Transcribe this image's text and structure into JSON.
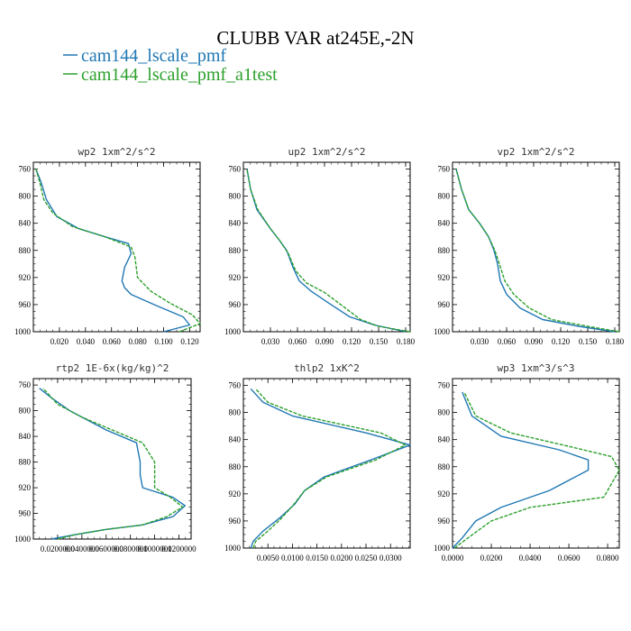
{
  "figure": {
    "title": "CLUBB VAR at245E,-2N",
    "legend": [
      {
        "label": "cam144_lscale_pmf",
        "color": "#1f77b4"
      },
      {
        "label": "cam144_lscale_pmf_a1test",
        "color": "#2ca02c"
      }
    ]
  },
  "chart_data": [
    {
      "type": "line",
      "title": "wp2   1xm^2/s^2",
      "y_ticks": [
        760,
        800,
        840,
        880,
        920,
        960,
        1000
      ],
      "y_range": [
        1000,
        750
      ],
      "x_range": [
        0,
        0.128
      ],
      "x_ticks": [
        0.02,
        0.04,
        0.06,
        0.08,
        0.1,
        0.12
      ],
      "x_tick_labels": [
        "0.020",
        "0.040",
        "0.060",
        "0.080",
        "0.100",
        "0.120"
      ],
      "series": [
        {
          "color": "#1f77b4",
          "dash": false,
          "x": [
            0.1,
            0.12,
            0.115,
            0.095,
            0.075,
            0.07,
            0.068,
            0.07,
            0.075,
            0.073,
            0.055,
            0.035,
            0.018,
            0.01,
            0.006,
            0.002
          ],
          "y": [
            1000,
            990,
            978,
            962,
            945,
            935,
            925,
            905,
            885,
            870,
            860,
            848,
            830,
            805,
            780,
            760
          ]
        },
        {
          "color": "#2ca02c",
          "dash": true,
          "x": [
            0.112,
            0.128,
            0.122,
            0.105,
            0.09,
            0.08,
            0.078,
            0.075,
            0.055,
            0.03,
            0.015,
            0.008,
            0.005,
            0.002
          ],
          "y": [
            1000,
            988,
            975,
            958,
            940,
            920,
            890,
            875,
            860,
            845,
            825,
            805,
            780,
            760
          ]
        }
      ]
    },
    {
      "type": "line",
      "title": "up2   1xm^2/s^2",
      "y_ticks": [
        760,
        800,
        840,
        880,
        920,
        960,
        1000
      ],
      "y_range": [
        1000,
        750
      ],
      "x_range": [
        0,
        0.185
      ],
      "x_ticks": [
        0.03,
        0.06,
        0.09,
        0.12,
        0.15,
        0.18
      ],
      "x_tick_labels": [
        "0.030",
        "0.060",
        "0.090",
        "0.120",
        "0.150",
        "0.180"
      ],
      "series": [
        {
          "color": "#1f77b4",
          "dash": false,
          "x": [
            0.18,
            0.145,
            0.118,
            0.095,
            0.075,
            0.062,
            0.055,
            0.048,
            0.04,
            0.03,
            0.015,
            0.008,
            0.004
          ],
          "y": [
            1000,
            990,
            978,
            958,
            940,
            925,
            905,
            880,
            865,
            848,
            820,
            790,
            760
          ]
        },
        {
          "color": "#2ca02c",
          "dash": true,
          "x": [
            0.185,
            0.15,
            0.13,
            0.11,
            0.09,
            0.07,
            0.058,
            0.05,
            0.04,
            0.03,
            0.016,
            0.008,
            0.004
          ],
          "y": [
            1000,
            992,
            982,
            962,
            942,
            928,
            910,
            885,
            865,
            848,
            820,
            790,
            760
          ]
        }
      ]
    },
    {
      "type": "line",
      "title": "vp2   1xm^2/s^2",
      "y_ticks": [
        760,
        800,
        840,
        880,
        920,
        960,
        1000
      ],
      "y_range": [
        1000,
        750
      ],
      "x_range": [
        0,
        0.185
      ],
      "x_ticks": [
        0.03,
        0.06,
        0.09,
        0.12,
        0.15,
        0.18
      ],
      "x_tick_labels": [
        "0.030",
        "0.060",
        "0.090",
        "0.120",
        "0.150",
        "0.180"
      ],
      "series": [
        {
          "color": "#1f77b4",
          "dash": false,
          "x": [
            0.18,
            0.14,
            0.1,
            0.075,
            0.06,
            0.053,
            0.05,
            0.046,
            0.04,
            0.03,
            0.018,
            0.01,
            0.004
          ],
          "y": [
            1000,
            992,
            982,
            965,
            945,
            925,
            900,
            880,
            860,
            840,
            820,
            790,
            760
          ]
        },
        {
          "color": "#2ca02c",
          "dash": true,
          "x": [
            0.185,
            0.15,
            0.11,
            0.085,
            0.068,
            0.058,
            0.052,
            0.047,
            0.04,
            0.03,
            0.018,
            0.01,
            0.004
          ],
          "y": [
            1000,
            992,
            982,
            965,
            945,
            925,
            900,
            880,
            860,
            840,
            820,
            790,
            760
          ]
        }
      ]
    },
    {
      "type": "line",
      "title": "rtp2   1E-6x(kg/kg)^2",
      "y_ticks": [
        760,
        800,
        840,
        880,
        920,
        960,
        1000
      ],
      "y_range": [
        1000,
        750
      ],
      "x_range": [
        0,
        0.13
      ],
      "x_ticks": [
        0.02,
        0.04,
        0.06,
        0.08,
        0.1,
        0.12
      ],
      "x_tick_labels": [
        "0.0200000",
        "0.0400000",
        "0.0600000",
        "0.0800000",
        "0.1000000",
        "0.1200000"
      ],
      "series": [
        {
          "color": "#1f77b4",
          "dash": false,
          "x": [
            0.015,
            0.035,
            0.06,
            0.09,
            0.115,
            0.125,
            0.115,
            0.09,
            0.088,
            0.088,
            0.085,
            0.06,
            0.03,
            0.015,
            0.005
          ],
          "y": [
            1000,
            993,
            985,
            978,
            965,
            948,
            935,
            920,
            900,
            880,
            850,
            830,
            800,
            780,
            765
          ]
        },
        {
          "color": "#2ca02c",
          "dash": true,
          "x": [
            0.02,
            0.035,
            0.06,
            0.09,
            0.11,
            0.123,
            0.113,
            0.1,
            0.1,
            0.09,
            0.065,
            0.04,
            0.02,
            0.008
          ],
          "y": [
            1000,
            993,
            985,
            978,
            965,
            950,
            935,
            920,
            880,
            850,
            830,
            810,
            790,
            765
          ]
        }
      ]
    },
    {
      "type": "line",
      "title": "thlp2   1xK^2",
      "y_ticks": [
        760,
        800,
        840,
        880,
        920,
        960,
        1000
      ],
      "y_range": [
        1000,
        750
      ],
      "x_range": [
        0,
        0.034
      ],
      "x_ticks": [
        0.005,
        0.01,
        0.015,
        0.02,
        0.025,
        0.03
      ],
      "x_tick_labels": [
        "0.0050",
        "0.0100",
        "0.0150",
        "0.0200",
        "0.0250",
        "0.0300"
      ],
      "series": [
        {
          "color": "#1f77b4",
          "dash": false,
          "x": [
            0.0015,
            0.002,
            0.004,
            0.0075,
            0.0105,
            0.0125,
            0.0165,
            0.026,
            0.034,
            0.025,
            0.01,
            0.004,
            0.0015
          ],
          "y": [
            1000,
            990,
            975,
            955,
            935,
            915,
            895,
            870,
            848,
            830,
            805,
            785,
            765
          ]
        },
        {
          "color": "#2ca02c",
          "dash": true,
          "x": [
            0.002,
            0.0025,
            0.0045,
            0.0075,
            0.01,
            0.0125,
            0.017,
            0.027,
            0.033,
            0.028,
            0.012,
            0.005,
            0.0025
          ],
          "y": [
            1000,
            990,
            978,
            958,
            938,
            915,
            895,
            870,
            848,
            830,
            805,
            785,
            765
          ]
        }
      ]
    },
    {
      "type": "line",
      "title": "wp3   1xm^3/s^3",
      "y_ticks": [
        760,
        800,
        840,
        880,
        920,
        960,
        1000
      ],
      "y_range": [
        1000,
        750
      ],
      "x_range": [
        0,
        0.086
      ],
      "x_ticks": [
        0,
        0.02,
        0.04,
        0.06,
        0.08
      ],
      "x_tick_labels": [
        "0.0000",
        "0.0200",
        "0.0400",
        "0.0600",
        "0.0800"
      ],
      "series": [
        {
          "color": "#1f77b4",
          "dash": false,
          "x": [
            0,
            0.005,
            0.012,
            0.025,
            0.05,
            0.07,
            0.07,
            0.055,
            0.025,
            0.01,
            0.005
          ],
          "y": [
            1000,
            985,
            960,
            940,
            915,
            885,
            870,
            855,
            835,
            805,
            770
          ]
        },
        {
          "color": "#2ca02c",
          "dash": true,
          "x": [
            0.001,
            0.008,
            0.02,
            0.04,
            0.078,
            0.086,
            0.082,
            0.06,
            0.03,
            0.012,
            0.006
          ],
          "y": [
            1000,
            985,
            960,
            940,
            925,
            885,
            865,
            850,
            830,
            805,
            770
          ]
        }
      ]
    }
  ]
}
